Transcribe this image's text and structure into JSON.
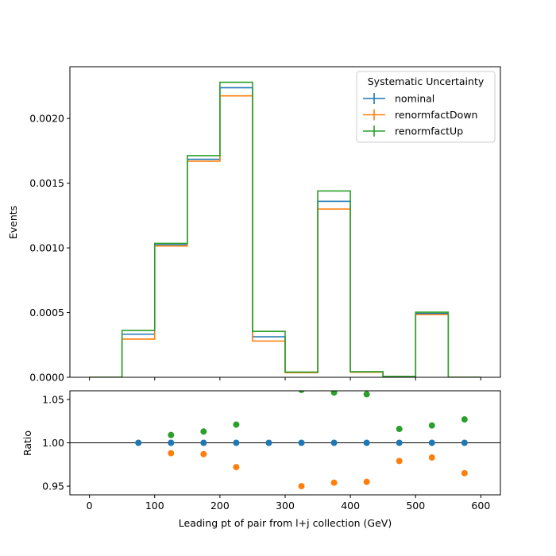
{
  "chart_data": [
    {
      "type": "line",
      "panel": "main",
      "ylabel": "Events",
      "ylim": [
        0,
        0.0024
      ],
      "xlim": [
        -30,
        630
      ],
      "yticks": [
        0,
        0.0005,
        0.001,
        0.0015,
        0.002
      ],
      "ytick_labels": [
        "0.0000",
        "0.0005",
        "0.0010",
        "0.0015",
        "0.0020"
      ],
      "bin_edges": [
        0,
        50,
        100,
        150,
        200,
        250,
        300,
        350,
        400,
        450,
        500,
        550,
        600
      ],
      "legend": {
        "title": "Systematic Uncertainty",
        "placement": "top-right"
      },
      "series": [
        {
          "name": "nominal",
          "color": "#1f77b4",
          "values": [
            0,
            0.000333,
            0.001025,
            0.001685,
            0.002238,
            0.000313,
            3.75e-05,
            0.00136,
            4.13e-05,
            6e-06,
            0.000493,
            0
          ]
        },
        {
          "name": "renormfactDown",
          "color": "#ff7f0e",
          "values": [
            0,
            0.000295,
            0.001015,
            0.00167,
            0.002175,
            0.00028,
            3.56e-05,
            0.0013,
            3.94e-05,
            5.8e-06,
            0.000485,
            0
          ]
        },
        {
          "name": "renormfactUp",
          "color": "#2ca02c",
          "values": [
            0,
            0.000362,
            0.001035,
            0.001713,
            0.00228,
            0.000355,
            4e-05,
            0.00144,
            4.36e-05,
            6.2e-06,
            0.000503,
            0
          ]
        }
      ]
    },
    {
      "type": "scatter",
      "panel": "ratio",
      "xlabel": "Leading pt of pair from l+j collection (GeV)",
      "ylabel": "Ratio",
      "xlim": [
        -30,
        630
      ],
      "ylim": [
        0.94,
        1.06
      ],
      "xticks": [
        0,
        100,
        200,
        300,
        400,
        500,
        600
      ],
      "xtick_labels": [
        "0",
        "100",
        "200",
        "300",
        "400",
        "500",
        "600"
      ],
      "yticks": [
        0.95,
        1.0,
        1.05
      ],
      "ytick_labels": [
        "0.95",
        "1.00",
        "1.05"
      ],
      "reference_line": 1.0,
      "series": [
        {
          "name": "nominal",
          "color": "#1f77b4",
          "x": [
            75,
            125,
            175,
            225,
            275,
            325,
            375,
            425,
            475,
            525,
            575
          ],
          "y": [
            1.0,
            1.0,
            1.0,
            1.0,
            1.0,
            1.0,
            1.0,
            1.0,
            1.0,
            1.0,
            1.0
          ]
        },
        {
          "name": "renormfactDown",
          "color": "#ff7f0e",
          "x": [
            125,
            175,
            225,
            325,
            375,
            425,
            475,
            525,
            575
          ],
          "y": [
            0.988,
            0.987,
            0.972,
            0.95,
            0.954,
            0.955,
            0.979,
            0.983,
            0.965
          ]
        },
        {
          "name": "renormfactUp",
          "color": "#2ca02c",
          "x": [
            125,
            175,
            225,
            325,
            375,
            425,
            475,
            525,
            575
          ],
          "y": [
            1.009,
            1.013,
            1.021,
            1.061,
            1.058,
            1.056,
            1.016,
            1.02,
            1.027
          ]
        }
      ]
    }
  ]
}
